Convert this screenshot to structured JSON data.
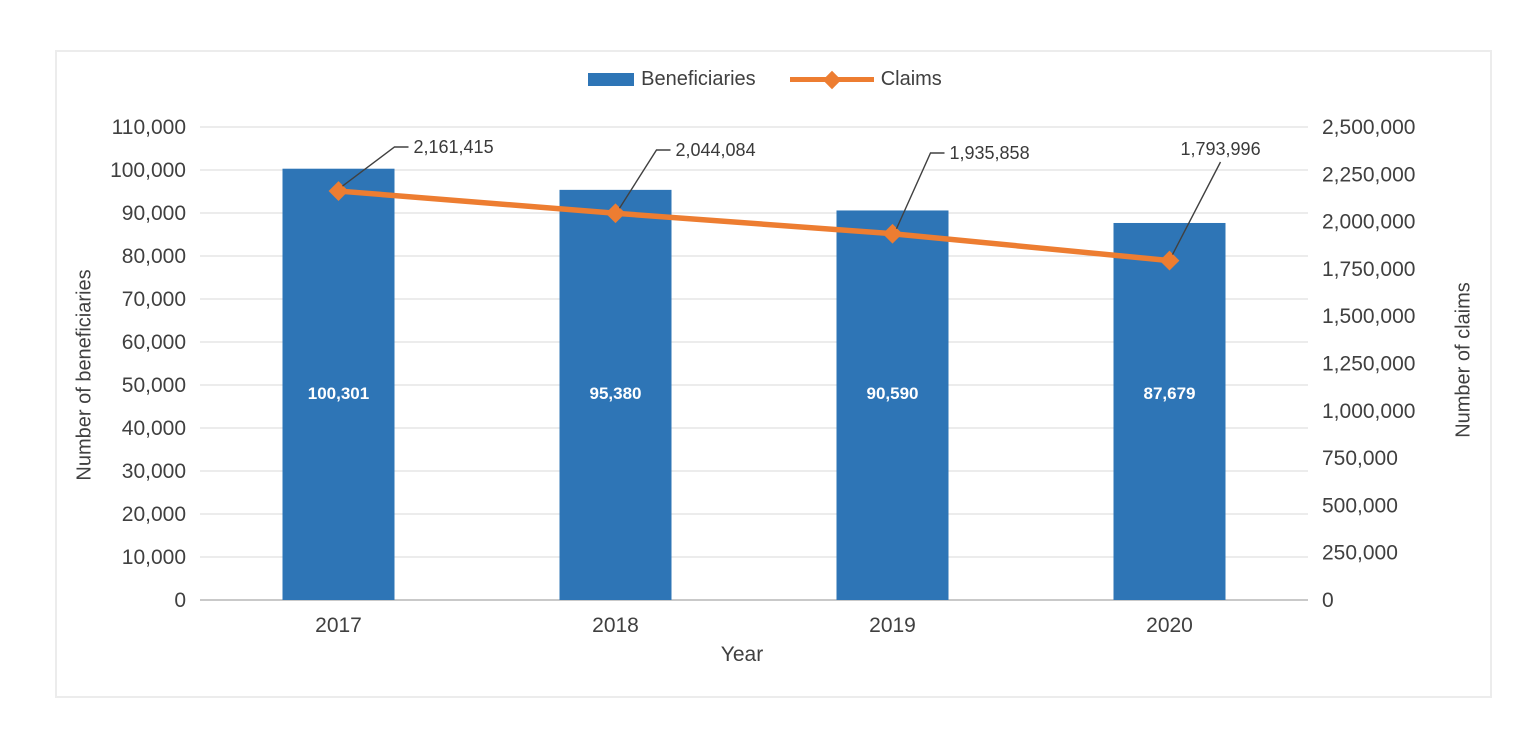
{
  "chart_data": {
    "type": "combo",
    "categories": [
      "2017",
      "2018",
      "2019",
      "2020"
    ],
    "series": [
      {
        "name": "Beneficiaries",
        "type": "bar",
        "axis": "left",
        "color": "#2E75B6",
        "values": [
          100301,
          95380,
          90590,
          87679
        ],
        "data_labels": [
          "100,301",
          "95,380",
          "90,590",
          "87,679"
        ]
      },
      {
        "name": "Claims",
        "type": "line",
        "axis": "right",
        "color": "#ED7D31",
        "marker": "diamond",
        "values": [
          2161415,
          2044084,
          1935858,
          1793996
        ],
        "data_labels": [
          "2,161,415",
          "2,044,084",
          "1,935,858",
          "1,793,996"
        ]
      }
    ],
    "x_axis": {
      "title": "Year",
      "tick_labels": [
        "2017",
        "2018",
        "2019",
        "2020"
      ]
    },
    "left_axis": {
      "title": "Number of beneficiaries",
      "min": 0,
      "max": 110000,
      "step": 10000,
      "tick_labels": [
        "0",
        "10,000",
        "20,000",
        "30,000",
        "40,000",
        "50,000",
        "60,000",
        "70,000",
        "80,000",
        "90,000",
        "100,000",
        "110,000"
      ]
    },
    "right_axis": {
      "title": "Number of claims",
      "min": 0,
      "max": 2500000,
      "step": 250000,
      "tick_labels": [
        "0",
        "250,000",
        "500,000",
        "750,000",
        "1,000,000",
        "1,250,000",
        "1,500,000",
        "1,750,000",
        "2,000,000",
        "2,250,000",
        "2,500,000"
      ]
    },
    "grid": true,
    "legend_position": "top",
    "colors": {
      "grid": "#D9D9D9",
      "axis_line": "#C9C9C9",
      "text": "#404040",
      "bar_label_text": "#FFFFFF",
      "callout_line": "#404040"
    }
  }
}
